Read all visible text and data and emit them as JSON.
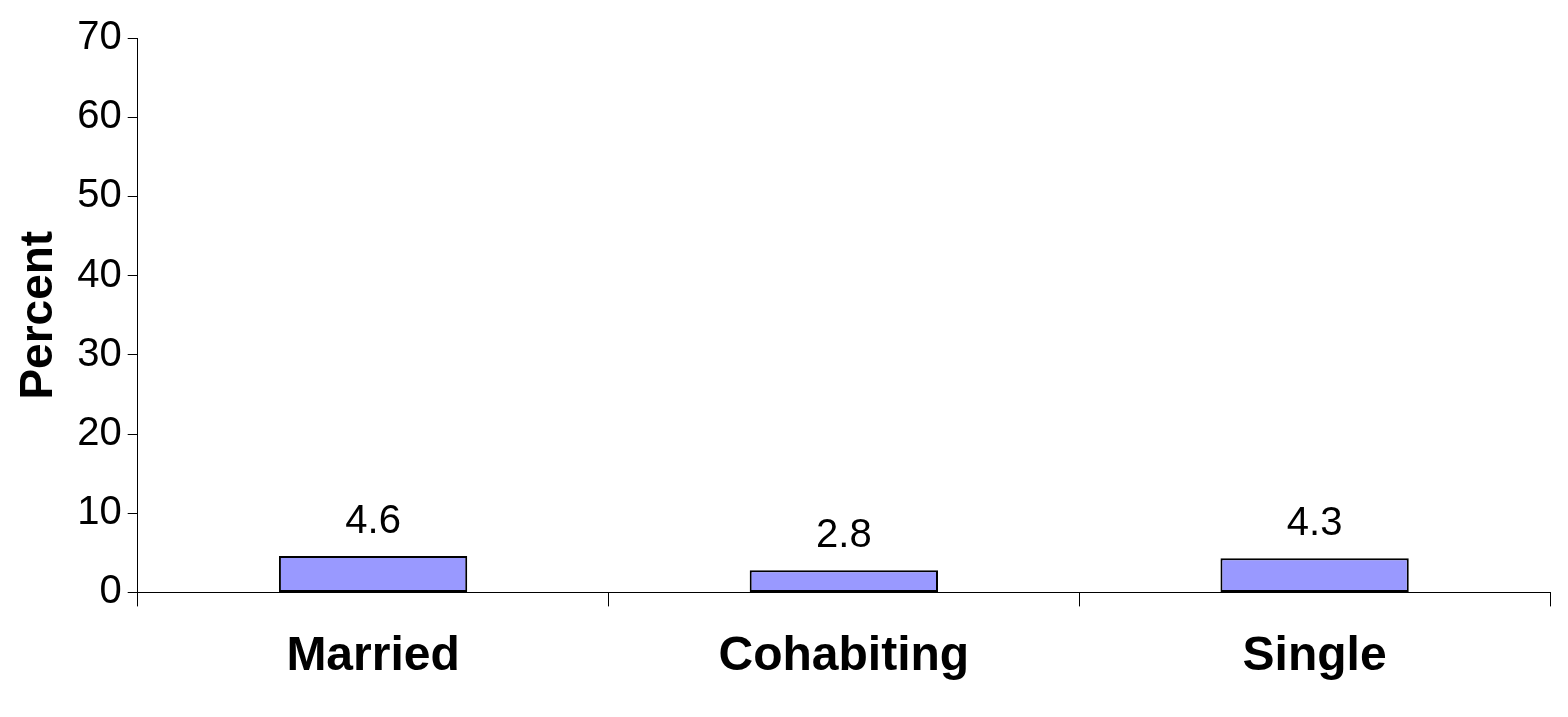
{
  "chart_data": {
    "type": "bar",
    "ylabel": "Percent",
    "categories": [
      "Married",
      "Cohabiting",
      "Single"
    ],
    "values": [
      4.6,
      2.8,
      4.3
    ],
    "color": "#9999ff",
    "ylim": [
      0,
      70
    ],
    "yticks": [
      0,
      10,
      20,
      30,
      40,
      50,
      60,
      70
    ],
    "grid": false,
    "legend": false,
    "data_labels": true
  }
}
